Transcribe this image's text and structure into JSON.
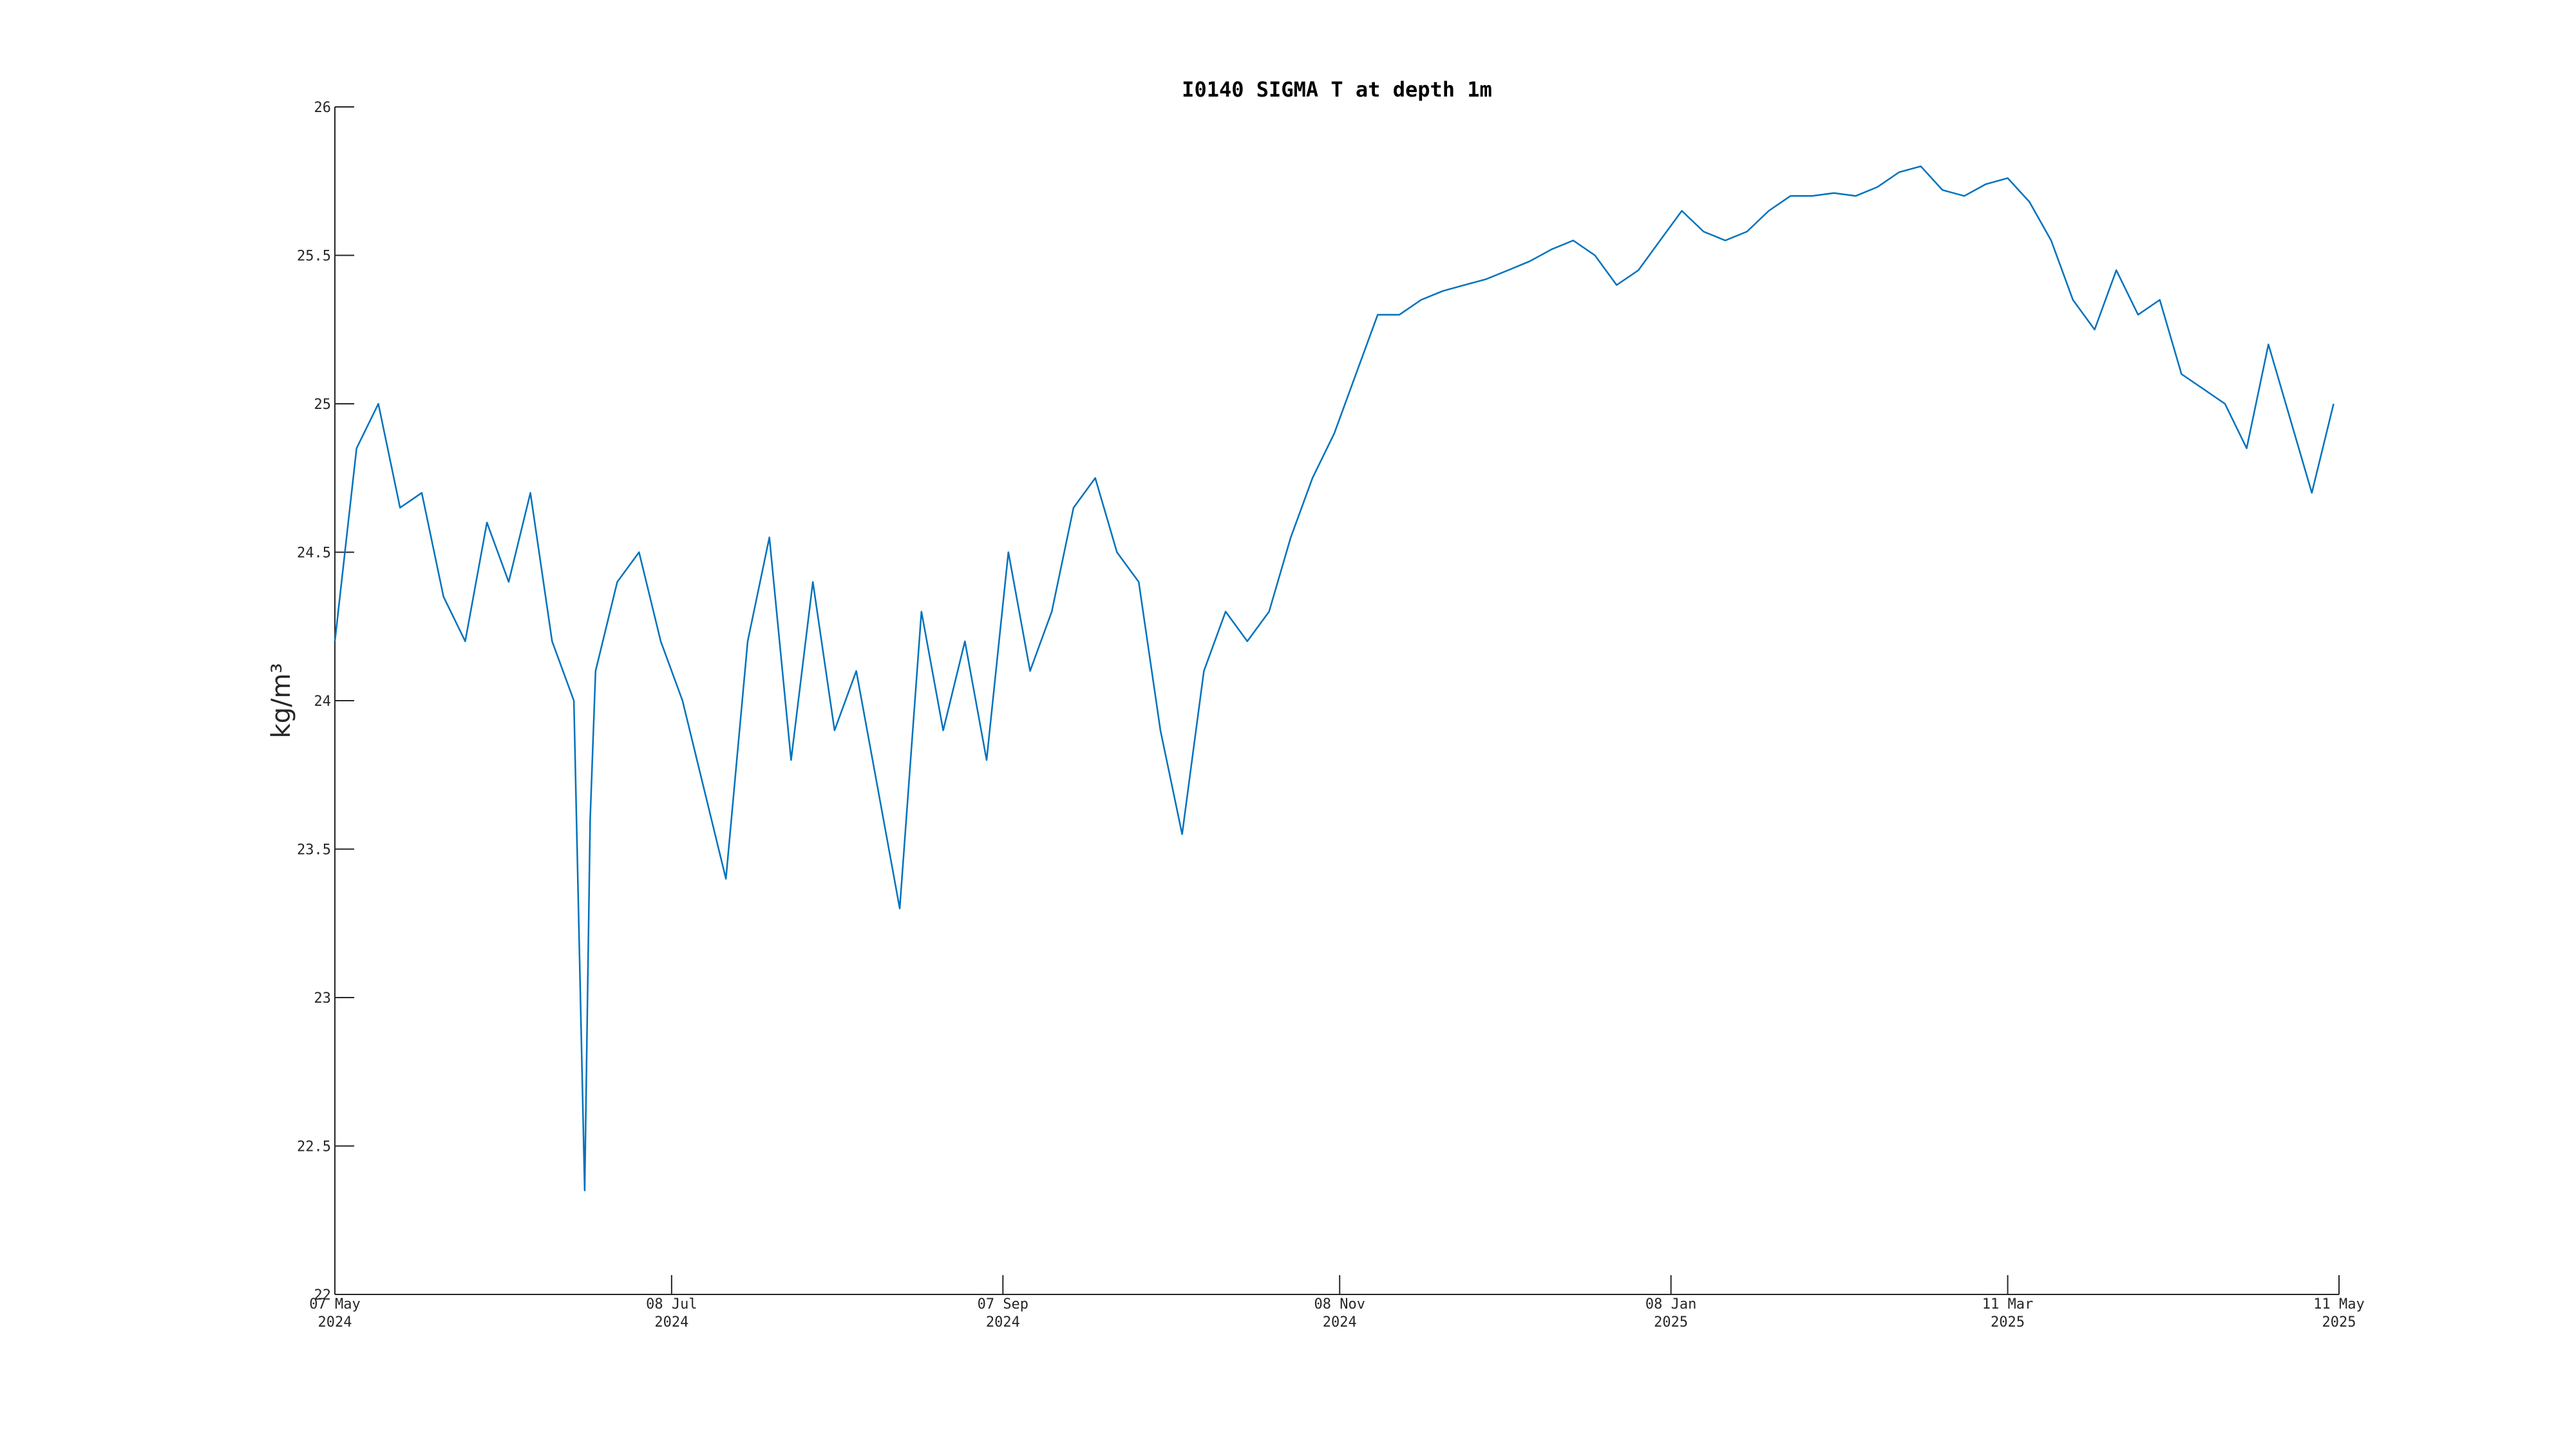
{
  "chart_data": {
    "type": "line",
    "title": "I0140 SIGMA T at depth 1m",
    "y_label": "kg/m³",
    "color": "#0072bd",
    "x": [
      "2024-05-07",
      "2024-05-11",
      "2024-05-15",
      "2024-05-19",
      "2024-05-23",
      "2024-05-27",
      "2024-05-31",
      "2024-06-04",
      "2024-06-08",
      "2024-06-12",
      "2024-06-16",
      "2024-06-20",
      "2024-06-22",
      "2024-06-23",
      "2024-06-24",
      "2024-06-28",
      "2024-07-02",
      "2024-07-06",
      "2024-07-10",
      "2024-07-14",
      "2024-07-18",
      "2024-07-22",
      "2024-07-26",
      "2024-07-30",
      "2024-08-03",
      "2024-08-07",
      "2024-08-11",
      "2024-08-15",
      "2024-08-19",
      "2024-08-23",
      "2024-08-27",
      "2024-08-31",
      "2024-09-04",
      "2024-09-08",
      "2024-09-12",
      "2024-09-16",
      "2024-09-20",
      "2024-09-24",
      "2024-09-28",
      "2024-10-02",
      "2024-10-06",
      "2024-10-10",
      "2024-10-14",
      "2024-10-18",
      "2024-10-22",
      "2024-10-26",
      "2024-10-30",
      "2024-11-03",
      "2024-11-07",
      "2024-11-11",
      "2024-11-15",
      "2024-11-19",
      "2024-11-23",
      "2024-11-27",
      "2024-12-01",
      "2024-12-05",
      "2024-12-09",
      "2024-12-13",
      "2024-12-17",
      "2024-12-21",
      "2024-12-25",
      "2024-12-29",
      "2025-01-02",
      "2025-01-06",
      "2025-01-10",
      "2025-01-14",
      "2025-01-18",
      "2025-01-22",
      "2025-01-26",
      "2025-01-30",
      "2025-02-03",
      "2025-02-07",
      "2025-02-11",
      "2025-02-15",
      "2025-02-19",
      "2025-02-23",
      "2025-02-27",
      "2025-03-03",
      "2025-03-07",
      "2025-03-11",
      "2025-03-15",
      "2025-03-19",
      "2025-03-23",
      "2025-03-27",
      "2025-03-31",
      "2025-04-04",
      "2025-04-08",
      "2025-04-12",
      "2025-04-16",
      "2025-04-20",
      "2025-04-24",
      "2025-04-28",
      "2025-05-02",
      "2025-05-06",
      "2025-05-10"
    ],
    "values": [
      24.2,
      24.85,
      25.0,
      24.65,
      24.7,
      24.35,
      24.2,
      24.6,
      24.4,
      24.7,
      24.2,
      24.0,
      22.35,
      23.6,
      24.1,
      24.4,
      24.5,
      24.2,
      24.0,
      23.7,
      23.4,
      24.2,
      24.55,
      23.8,
      24.4,
      23.9,
      24.1,
      23.7,
      23.3,
      24.3,
      23.9,
      24.2,
      23.8,
      24.5,
      24.1,
      24.3,
      24.65,
      24.75,
      24.5,
      24.4,
      23.9,
      23.55,
      24.1,
      24.3,
      24.2,
      24.3,
      24.55,
      24.75,
      24.9,
      25.1,
      25.3,
      25.3,
      25.35,
      25.38,
      25.4,
      25.42,
      25.45,
      25.48,
      25.52,
      25.55,
      25.5,
      25.4,
      25.45,
      25.55,
      25.65,
      25.58,
      25.55,
      25.58,
      25.65,
      25.7,
      25.7,
      25.71,
      25.7,
      25.73,
      25.78,
      25.8,
      25.72,
      25.7,
      25.74,
      25.76,
      25.68,
      25.55,
      25.35,
      25.25,
      25.45,
      25.3,
      25.35,
      25.1,
      25.05,
      25.0,
      24.85,
      25.2,
      24.95,
      24.7,
      25.0
    ],
    "xlim": [
      "2024-05-07",
      "2025-05-11"
    ],
    "xticks": [
      {
        "value": "2024-05-07",
        "label": [
          "07 May",
          "2024"
        ]
      },
      {
        "value": "2024-07-08",
        "label": [
          "08 Jul",
          "2024"
        ]
      },
      {
        "value": "2024-09-07",
        "label": [
          "07 Sep",
          "2024"
        ]
      },
      {
        "value": "2024-11-08",
        "label": [
          "08 Nov",
          "2024"
        ]
      },
      {
        "value": "2025-01-08",
        "label": [
          "08 Jan",
          "2025"
        ]
      },
      {
        "value": "2025-03-11",
        "label": [
          "11 Mar",
          "2025"
        ]
      },
      {
        "value": "2025-05-11",
        "label": [
          "11 May",
          "2025"
        ]
      }
    ],
    "ylim": [
      22,
      26
    ],
    "yticks": [
      22,
      22.5,
      23,
      23.5,
      24,
      24.5,
      25,
      25.5,
      26
    ],
    "grid": false
  }
}
